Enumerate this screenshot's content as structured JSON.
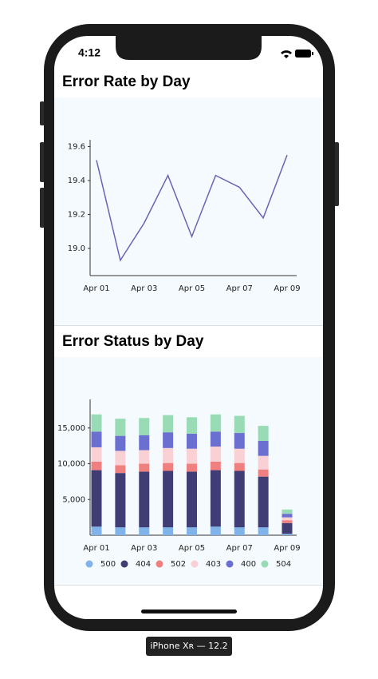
{
  "status_bar": {
    "time": "4:12"
  },
  "device_label": "iPhone Xʀ — 12.2",
  "chart_data": [
    {
      "type": "line",
      "title": "Error Rate by Day",
      "categories": [
        "Apr 01",
        null,
        "Apr 03",
        null,
        "Apr 05",
        null,
        "Apr 07",
        null,
        "Apr 09"
      ],
      "values": [
        19.52,
        18.93,
        19.15,
        19.43,
        19.07,
        19.43,
        19.36,
        19.18,
        19.55
      ],
      "color": "#6a63b5",
      "ylim": [
        18.84,
        19.64
      ],
      "yticks": [
        {
          "value": 19,
          "label": "19.0"
        },
        19.2,
        19.4,
        19.6
      ]
    },
    {
      "type": "stacked-bar",
      "title": "Error Status by Day",
      "categories": [
        "Apr 01",
        null,
        "Apr 03",
        null,
        "Apr 05",
        null,
        "Apr 07",
        null,
        "Apr 09"
      ],
      "series": [
        {
          "name": "500",
          "color": "#7fb3ea",
          "values": [
            1200,
            1100,
            1100,
            1100,
            1100,
            1200,
            1100,
            1100,
            200
          ]
        },
        {
          "name": "404",
          "color": "#3f3d73",
          "values": [
            7900,
            7600,
            7800,
            7900,
            7800,
            7900,
            7900,
            7100,
            1500
          ]
        },
        {
          "name": "502",
          "color": "#f08080",
          "values": [
            1200,
            1100,
            1100,
            1100,
            1100,
            1200,
            1100,
            1000,
            400
          ]
        },
        {
          "name": "403",
          "color": "#f9d0d4",
          "values": [
            2000,
            2000,
            1900,
            2100,
            2100,
            2100,
            2000,
            1900,
            400
          ]
        },
        {
          "name": "400",
          "color": "#6b6fd0",
          "values": [
            2200,
            2100,
            2100,
            2200,
            2100,
            2100,
            2200,
            2100,
            500
          ]
        },
        {
          "name": "504",
          "color": "#98dbb4",
          "values": [
            2400,
            2400,
            2400,
            2400,
            2300,
            2400,
            2400,
            2100,
            600
          ]
        }
      ],
      "ylim": [
        0,
        19000
      ],
      "yticks": [
        {
          "value": 5000,
          "label": "5,000"
        },
        {
          "value": 10000,
          "label": "10,000"
        },
        {
          "value": 15000,
          "label": "15,000"
        }
      ],
      "legend": "bottom"
    }
  ]
}
